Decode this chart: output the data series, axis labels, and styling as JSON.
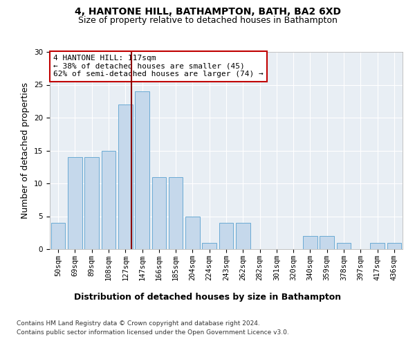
{
  "title": "4, HANTONE HILL, BATHAMPTON, BATH, BA2 6XD",
  "subtitle": "Size of property relative to detached houses in Bathampton",
  "xlabel": "Distribution of detached houses by size in Bathampton",
  "ylabel": "Number of detached properties",
  "categories": [
    "50sqm",
    "69sqm",
    "89sqm",
    "108sqm",
    "127sqm",
    "147sqm",
    "166sqm",
    "185sqm",
    "204sqm",
    "224sqm",
    "243sqm",
    "262sqm",
    "282sqm",
    "301sqm",
    "320sqm",
    "340sqm",
    "359sqm",
    "378sqm",
    "397sqm",
    "417sqm",
    "436sqm"
  ],
  "values": [
    4,
    14,
    14,
    15,
    22,
    24,
    11,
    11,
    5,
    1,
    4,
    4,
    0,
    0,
    0,
    2,
    2,
    1,
    0,
    1,
    1
  ],
  "bar_color": "#c5d8eb",
  "bar_edgecolor": "#6aaad4",
  "vline_x": 4.35,
  "vline_color": "#8b0000",
  "annotation_text": "4 HANTONE HILL: 117sqm\n← 38% of detached houses are smaller (45)\n62% of semi-detached houses are larger (74) →",
  "annotation_box_color": "#ffffff",
  "annotation_box_edgecolor": "#c00000",
  "ylim": [
    0,
    30
  ],
  "yticks": [
    0,
    5,
    10,
    15,
    20,
    25,
    30
  ],
  "footnote1": "Contains HM Land Registry data © Crown copyright and database right 2024.",
  "footnote2": "Contains public sector information licensed under the Open Government Licence v3.0.",
  "background_color": "#e8eef4",
  "title_fontsize": 10,
  "subtitle_fontsize": 9,
  "axis_label_fontsize": 9,
  "tick_fontsize": 7.5,
  "annotation_fontsize": 8,
  "footnote_fontsize": 6.5
}
